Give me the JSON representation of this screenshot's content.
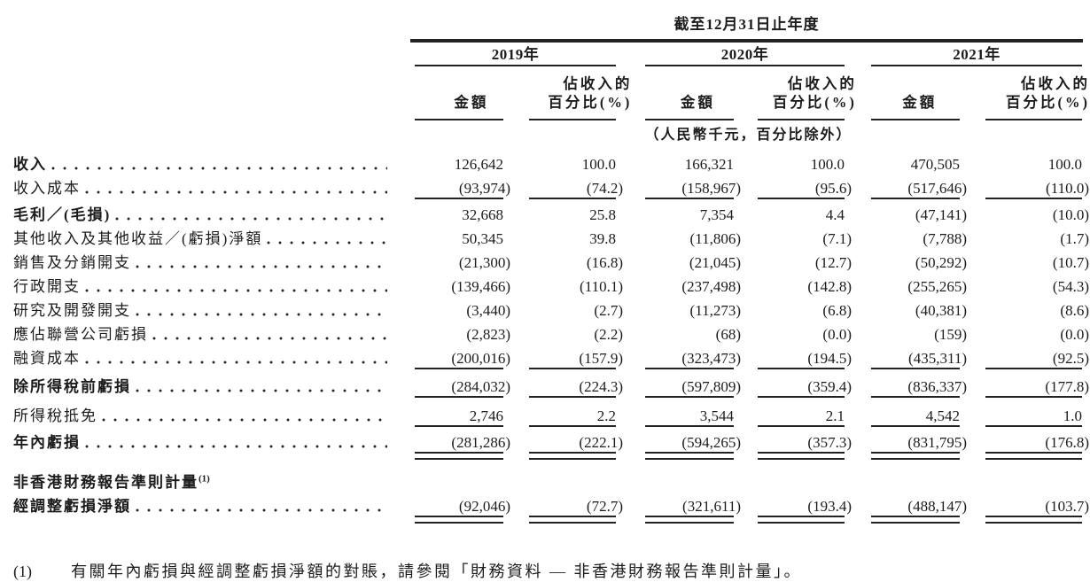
{
  "table": {
    "title": "截至12月31日止年度",
    "unit_note": "（人民幣千元，百分比除外）",
    "years": [
      {
        "label": "2019年"
      },
      {
        "label": "2020年"
      },
      {
        "label": "2021年"
      }
    ],
    "col_headers": {
      "amount": "金額",
      "pct_line1": "佔收入的",
      "pct_line2": "百分比(%)"
    },
    "rows": [
      {
        "label": "收入",
        "values": [
          "126,642",
          "100.0",
          "166,321",
          "100.0",
          "470,505",
          "100.0"
        ]
      },
      {
        "label": "收入成本",
        "values": [
          "(93,974)",
          "(74.2)",
          "(158,967)",
          "(95.6)",
          "(517,646)",
          "(110.0)"
        ]
      },
      {
        "label": "毛利／(毛損)",
        "values": [
          "32,668",
          "25.8",
          "7,354",
          "4.4",
          "(47,141)",
          "(10.0)"
        ]
      },
      {
        "label": "其他收入及其他收益／(虧損)淨額",
        "values": [
          "50,345",
          "39.8",
          "(11,806)",
          "(7.1)",
          "(7,788)",
          "(1.7)"
        ]
      },
      {
        "label": "銷售及分銷開支",
        "values": [
          "(21,300)",
          "(16.8)",
          "(21,045)",
          "(12.7)",
          "(50,292)",
          "(10.7)"
        ]
      },
      {
        "label": "行政開支",
        "values": [
          "(139,466)",
          "(110.1)",
          "(237,498)",
          "(142.8)",
          "(255,265)",
          "(54.3)"
        ]
      },
      {
        "label": "研究及開發開支",
        "values": [
          "(3,440)",
          "(2.7)",
          "(11,273)",
          "(6.8)",
          "(40,381)",
          "(8.6)"
        ]
      },
      {
        "label": "應佔聯營公司虧損",
        "values": [
          "(2,823)",
          "(2.2)",
          "(68)",
          "(0.0)",
          "(159)",
          "(0.0)"
        ]
      },
      {
        "label": "融資成本",
        "values": [
          "(200,016)",
          "(157.9)",
          "(323,473)",
          "(194.5)",
          "(435,311)",
          "(92.5)"
        ]
      },
      {
        "label": "除所得稅前虧損",
        "values": [
          "(284,032)",
          "(224.3)",
          "(597,809)",
          "(359.4)",
          "(836,337)",
          "(177.8)"
        ]
      },
      {
        "label": "所得稅抵免",
        "values": [
          "2,746",
          "2.2",
          "3,544",
          "2.1",
          "4,542",
          "1.0"
        ]
      },
      {
        "label": "年內虧損",
        "values": [
          "(281,286)",
          "(222.1)",
          "(594,265)",
          "(357.3)",
          "(831,795)",
          "(176.8)"
        ]
      },
      {
        "label": "非香港財務報告準則計量",
        "sup": "(1)"
      },
      {
        "label": "經調整虧損淨額",
        "values": [
          "(92,046)",
          "(72.7)",
          "(321,611)",
          "(193.4)",
          "(488,147)",
          "(103.7)"
        ]
      }
    ]
  },
  "footnote": {
    "marker": "(1)",
    "text": "有關年內虧損與經調整虧損淨額的對賬，請參閱「財務資料 — 非香港財務報告準則計量」。"
  }
}
